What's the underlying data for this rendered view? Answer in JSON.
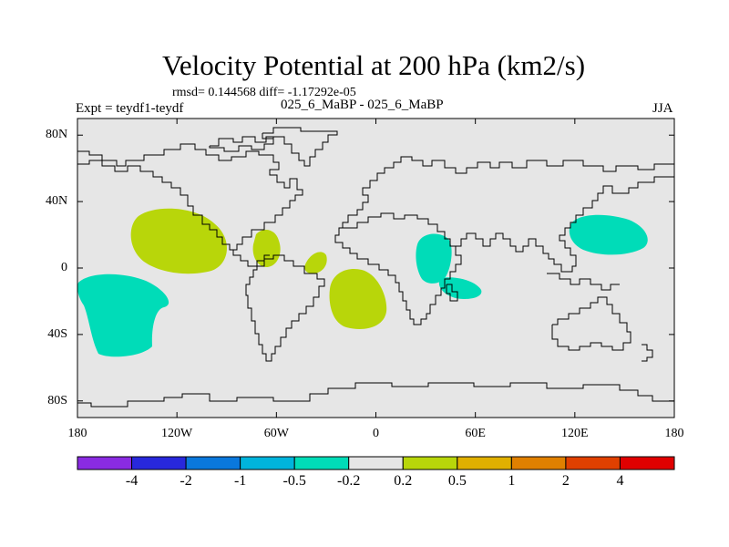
{
  "title": "Velocity Potential at 200 hPa (km2/s)",
  "stats": "rmsd= 0.144568 diff= -1.17292e-05",
  "experiment": "Expt = teydf1-teydf",
  "periods": "025_6_MaBP - 025_6_MaBP",
  "season": "JJA",
  "colors": {
    "background": "#e6e6e6",
    "positive_fill": "#b8d60a",
    "negative_fill": "#00dcb8",
    "coastline": "#000000"
  },
  "map": {
    "projection": "cylindrical-equidistant",
    "lon_range": [
      -180,
      180
    ],
    "lat_range": [
      -90,
      90
    ],
    "lat_labels": [
      {
        "lat": 80,
        "label": "80N"
      },
      {
        "lat": 40,
        "label": "40N"
      },
      {
        "lat": 0,
        "label": "0"
      },
      {
        "lat": -40,
        "label": "40S"
      },
      {
        "lat": -80,
        "label": "80S"
      }
    ],
    "lon_labels": [
      {
        "lon": -180,
        "label": "180"
      },
      {
        "lon": -120,
        "label": "120W"
      },
      {
        "lon": -60,
        "label": "60W"
      },
      {
        "lon": 0,
        "label": "0"
      },
      {
        "lon": 60,
        "label": "60E"
      },
      {
        "lon": 120,
        "label": "120E"
      },
      {
        "lon": 180,
        "label": "180"
      }
    ]
  },
  "anomalies": [
    {
      "name": "anomaly-eastern-north-pacific",
      "sign": "positive",
      "level": "0.2 to 0.5",
      "center_lon": -116,
      "center_lat": 17
    },
    {
      "name": "anomaly-central-america",
      "sign": "positive",
      "level": "0.2 to 0.5",
      "center_lon": -70,
      "center_lat": 12
    },
    {
      "name": "anomaly-equatorial-atlantic",
      "sign": "positive",
      "level": "0.2 to 0.5",
      "center_lon": -35,
      "center_lat": 4
    },
    {
      "name": "anomaly-south-atlantic",
      "sign": "positive",
      "level": "0.2 to 0.5",
      "center_lon": -10,
      "center_lat": -18
    },
    {
      "name": "anomaly-south-pacific",
      "sign": "negative",
      "level": "-0.5 to -0.2",
      "center_lon": -155,
      "center_lat": -28
    },
    {
      "name": "anomaly-east-africa",
      "sign": "negative",
      "level": "-0.5 to -0.2",
      "center_lon": 42,
      "center_lat": 2
    },
    {
      "name": "anomaly-madagascar",
      "sign": "negative",
      "level": "-0.5 to -0.2",
      "center_lon": 50,
      "center_lat": -12
    },
    {
      "name": "anomaly-west-pacific",
      "sign": "negative",
      "level": "-0.5 to -0.2",
      "center_lon": 144,
      "center_lat": 20
    }
  ],
  "colorbar": {
    "boxes": [
      "#8a2be2",
      "#2828dc",
      "#0a78dc",
      "#00b4dc",
      "#00dcb8",
      "#e6e6e6",
      "#b8d60a",
      "#e0b000",
      "#e08000",
      "#e04000",
      "#e00000"
    ],
    "labels": [
      "-4",
      "-2",
      "-1",
      "-0.5",
      "-0.2",
      "0.2",
      "0.5",
      "1",
      "2",
      "4"
    ]
  }
}
